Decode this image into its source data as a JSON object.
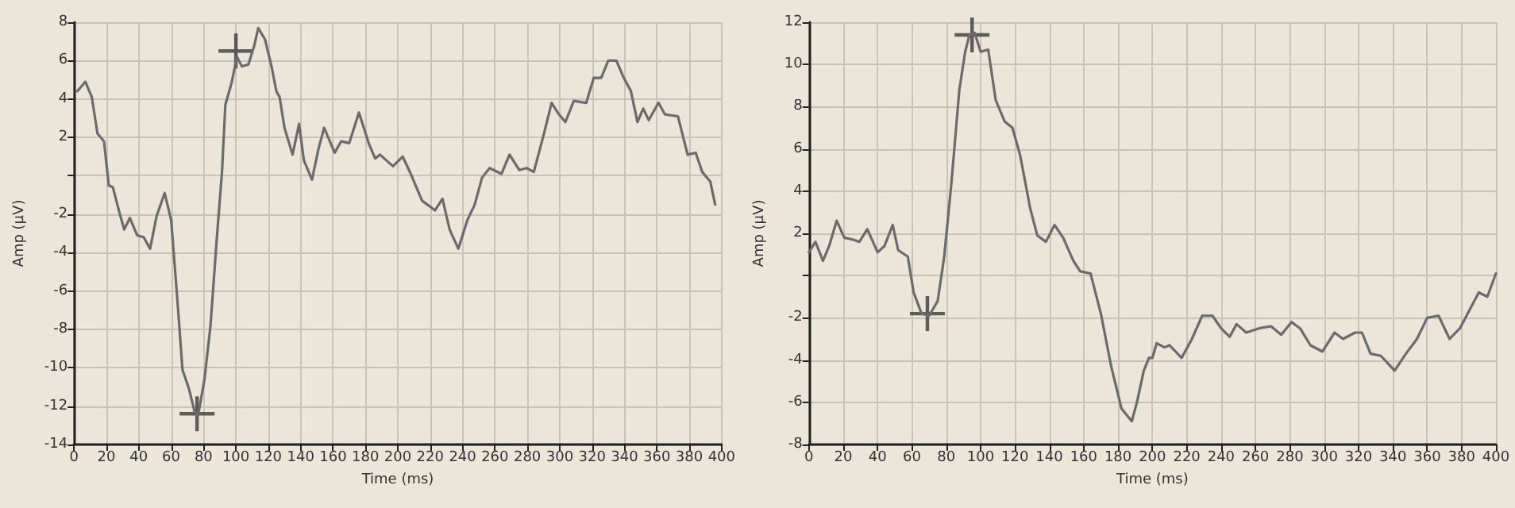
{
  "chart_data": [
    {
      "type": "line",
      "xlabel": "Time (ms)",
      "ylabel": "Amp (μV)",
      "xlim": [
        0,
        400
      ],
      "ylim": [
        -14,
        8
      ],
      "xticks": [
        0,
        20,
        40,
        60,
        80,
        100,
        120,
        140,
        160,
        180,
        200,
        220,
        240,
        260,
        280,
        300,
        320,
        340,
        360,
        380,
        400
      ],
      "yticks": [
        -14,
        -12,
        -10,
        -8,
        -6,
        -4,
        -2,
        {
          "value": 0,
          "label": null
        },
        2,
        4,
        6,
        8
      ],
      "grid": true,
      "marker": "none",
      "line_style": "solid",
      "series": [
        {
          "color": "#6b6b6b",
          "x": [
            2,
            7,
            11,
            14.5,
            18.5,
            21.5,
            24,
            28,
            31,
            34.5,
            39,
            43,
            47,
            51,
            56,
            60,
            63.7,
            67,
            71,
            74.5,
            76.6,
            80.6,
            84.3,
            88,
            91.4,
            93.5,
            97.5,
            100.6,
            103.7,
            107.7,
            111.4,
            113.8,
            118,
            122,
            125,
            127,
            130,
            135,
            139,
            142,
            147,
            151,
            154.5,
            161,
            165,
            170,
            176,
            182,
            186,
            189,
            197,
            203,
            208,
            215,
            223,
            227.6,
            232,
            237.4,
            243,
            247.5,
            252,
            256.7,
            264,
            269,
            275,
            279.6,
            284,
            290,
            295,
            299.5,
            303.5,
            308.7,
            316.4,
            321,
            325.6,
            330,
            335,
            339,
            344,
            348,
            351.6,
            355,
            361,
            365,
            373,
            379,
            384,
            388,
            393,
            396
          ],
          "values": [
            4.4,
            4.9,
            4.1,
            2.2,
            1.8,
            -0.5,
            -0.6,
            -1.9,
            -2.8,
            -2.2,
            -3.1,
            -3.2,
            -3.8,
            -2.1,
            -0.9,
            -2.3,
            -6.3,
            -10.1,
            -11.1,
            -12.3,
            -12.5,
            -10.6,
            -7.8,
            -3.5,
            0.2,
            3.7,
            4.9,
            6.2,
            5.7,
            5.8,
            6.8,
            7.7,
            7.1,
            5.7,
            4.4,
            4.1,
            2.5,
            1.1,
            2.7,
            0.8,
            -0.2,
            1.4,
            2.5,
            1.2,
            1.8,
            1.7,
            3.3,
            1.7,
            0.9,
            1.1,
            0.5,
            1.0,
            0.1,
            -1.3,
            -1.8,
            -1.2,
            -2.8,
            -3.8,
            -2.3,
            -1.5,
            -0.1,
            0.4,
            0.1,
            1.1,
            0.3,
            0.4,
            0.2,
            2.1,
            3.8,
            3.2,
            2.8,
            3.9,
            3.8,
            5.1,
            5.1,
            6.0,
            6.0,
            5.2,
            4.4,
            2.8,
            3.5,
            2.9,
            3.8,
            3.2,
            3.1,
            1.1,
            1.2,
            0.2,
            -0.3,
            -1.5
          ]
        },
        {
          "type": "scatter",
          "marker": "cross",
          "color": "#3a3a3a",
          "x": [
            76,
            100
          ],
          "values": [
            -12.4,
            6.5
          ]
        }
      ]
    },
    {
      "type": "line",
      "xlabel": "Time (ms)",
      "ylabel": "Amp (μV)",
      "xlim": [
        0,
        400
      ],
      "ylim": [
        -8,
        12
      ],
      "xticks": [
        0,
        20,
        40,
        60,
        80,
        100,
        120,
        140,
        160,
        180,
        200,
        220,
        240,
        260,
        280,
        300,
        320,
        340,
        360,
        380,
        400
      ],
      "yticks": [
        -8,
        -6,
        -4,
        -2,
        {
          "value": 0,
          "label": null
        },
        2,
        4,
        6,
        8,
        10,
        12
      ],
      "grid": true,
      "marker": "none",
      "line_style": "solid",
      "series": [
        {
          "color": "#6b6b6b",
          "x": [
            0,
            3.8,
            8.2,
            11.8,
            16.2,
            20.6,
            25.9,
            29.4,
            34,
            40,
            44,
            48.8,
            52,
            57.6,
            61,
            65.6,
            70,
            75,
            78.8,
            83,
            87.6,
            91,
            93.5,
            96.5,
            100,
            104.4,
            108.8,
            114,
            118.5,
            123,
            128.8,
            133,
            138,
            143,
            148,
            154,
            158,
            164,
            170,
            176,
            182,
            188,
            191,
            195,
            198,
            200,
            202.5,
            207,
            210,
            217,
            223,
            229,
            235,
            240,
            245,
            249,
            254.6,
            262,
            269,
            275,
            281,
            286,
            292,
            299,
            306,
            311,
            318,
            322,
            327,
            333,
            341,
            347.6,
            354,
            360,
            366.6,
            373,
            379,
            385.5,
            390,
            395,
            400
          ],
          "values": [
            1.1,
            1.6,
            0.7,
            1.4,
            2.6,
            1.8,
            1.7,
            1.6,
            2.2,
            1.1,
            1.4,
            2.4,
            1.2,
            0.9,
            -0.8,
            -1.8,
            -1.9,
            -1.2,
            0.9,
            4.4,
            8.8,
            10.6,
            11.4,
            11.5,
            10.6,
            10.7,
            8.3,
            7.3,
            7.0,
            5.7,
            3.2,
            1.9,
            1.6,
            2.4,
            1.8,
            0.7,
            0.2,
            0.1,
            -1.8,
            -4.3,
            -6.3,
            -6.9,
            -6.0,
            -4.5,
            -3.9,
            -3.9,
            -3.2,
            -3.4,
            -3.3,
            -3.9,
            -3.0,
            -1.9,
            -1.9,
            -2.5,
            -2.9,
            -2.3,
            -2.7,
            -2.5,
            -2.4,
            -2.8,
            -2.2,
            -2.5,
            -3.3,
            -3.6,
            -2.7,
            -3.0,
            -2.7,
            -2.7,
            -3.7,
            -3.8,
            -4.5,
            -3.7,
            -3.0,
            -2.0,
            -1.9,
            -3.0,
            -2.5,
            -1.5,
            -0.8,
            -1.0,
            0.1
          ]
        },
        {
          "type": "scatter",
          "marker": "cross",
          "color": "#3a3a3a",
          "x": [
            69,
            95
          ],
          "values": [
            -1.8,
            11.4
          ]
        }
      ]
    }
  ]
}
